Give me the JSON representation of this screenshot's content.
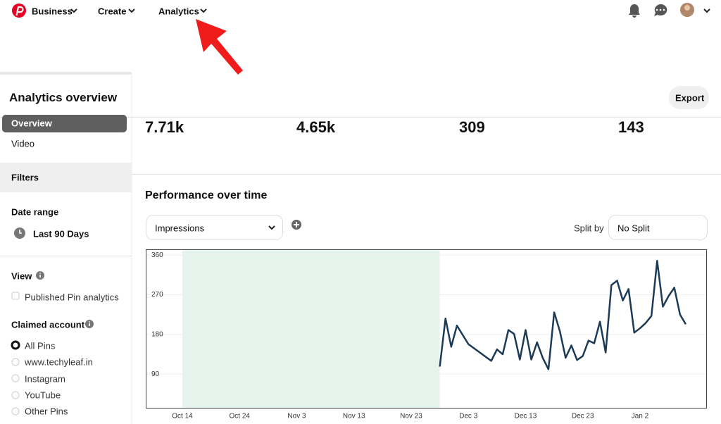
{
  "nav": {
    "items": [
      "Business",
      "Create",
      "Analytics"
    ]
  },
  "sidebar": {
    "title": "Analytics overview",
    "tabs": [
      "Overview",
      "Video"
    ],
    "filters": "Filters",
    "date_range": {
      "label": "Date range",
      "value": "Last 90 Days"
    },
    "view": {
      "label": "View",
      "options": [
        "Published Pin analytics"
      ]
    },
    "claimed_account": {
      "label": "Claimed account",
      "options": [
        "All Pins",
        "www.techyleaf.in",
        "Instagram",
        "YouTube",
        "Other Pins"
      ]
    }
  },
  "export": "Export",
  "stats": [
    "7.71k",
    "4.65k",
    "309",
    "143"
  ],
  "controls": {
    "metric": "Impressions",
    "split_label": "Split by",
    "split_value": "No Split"
  },
  "chart_data": {
    "type": "line",
    "title": "Performance over time",
    "color": "#1d3b57",
    "grid": true,
    "x": [
      45,
      46,
      47,
      48,
      50,
      52,
      54,
      55,
      56,
      57,
      58,
      59,
      60,
      61,
      62,
      63,
      64,
      65,
      66,
      67,
      68,
      69,
      70,
      71,
      72,
      73,
      74,
      75,
      76,
      77,
      78,
      79,
      80,
      81,
      82,
      83,
      84,
      85,
      86,
      87,
      88
    ],
    "values": [
      107,
      216,
      152,
      200,
      158,
      139,
      120,
      146,
      135,
      190,
      181,
      123,
      190,
      123,
      162,
      127,
      101,
      230,
      187,
      127,
      155,
      122,
      131,
      166,
      160,
      209,
      139,
      292,
      302,
      257,
      283,
      184,
      194,
      206,
      222,
      347,
      243,
      267,
      286,
      225,
      203
    ],
    "highlight": [
      0,
      45
    ],
    "highlight_color": "#e6f4ee",
    "xlim": [
      -6.4,
      91.7
    ],
    "xticks": [
      {
        "value": 0,
        "label": "Oct 14"
      },
      {
        "value": 10,
        "label": "Oct 24"
      },
      {
        "value": 20,
        "label": "Nov 3"
      },
      {
        "value": 30,
        "label": "Nov 13"
      },
      {
        "value": 40,
        "label": "Nov 23"
      },
      {
        "value": 50,
        "label": "Dec 3"
      },
      {
        "value": 60,
        "label": "Dec 13"
      },
      {
        "value": 70,
        "label": "Dec 23"
      },
      {
        "value": 80,
        "label": "Jan 2"
      }
    ],
    "ylim": [
      12,
      373
    ],
    "yticks": [
      90,
      180,
      270,
      360
    ]
  }
}
